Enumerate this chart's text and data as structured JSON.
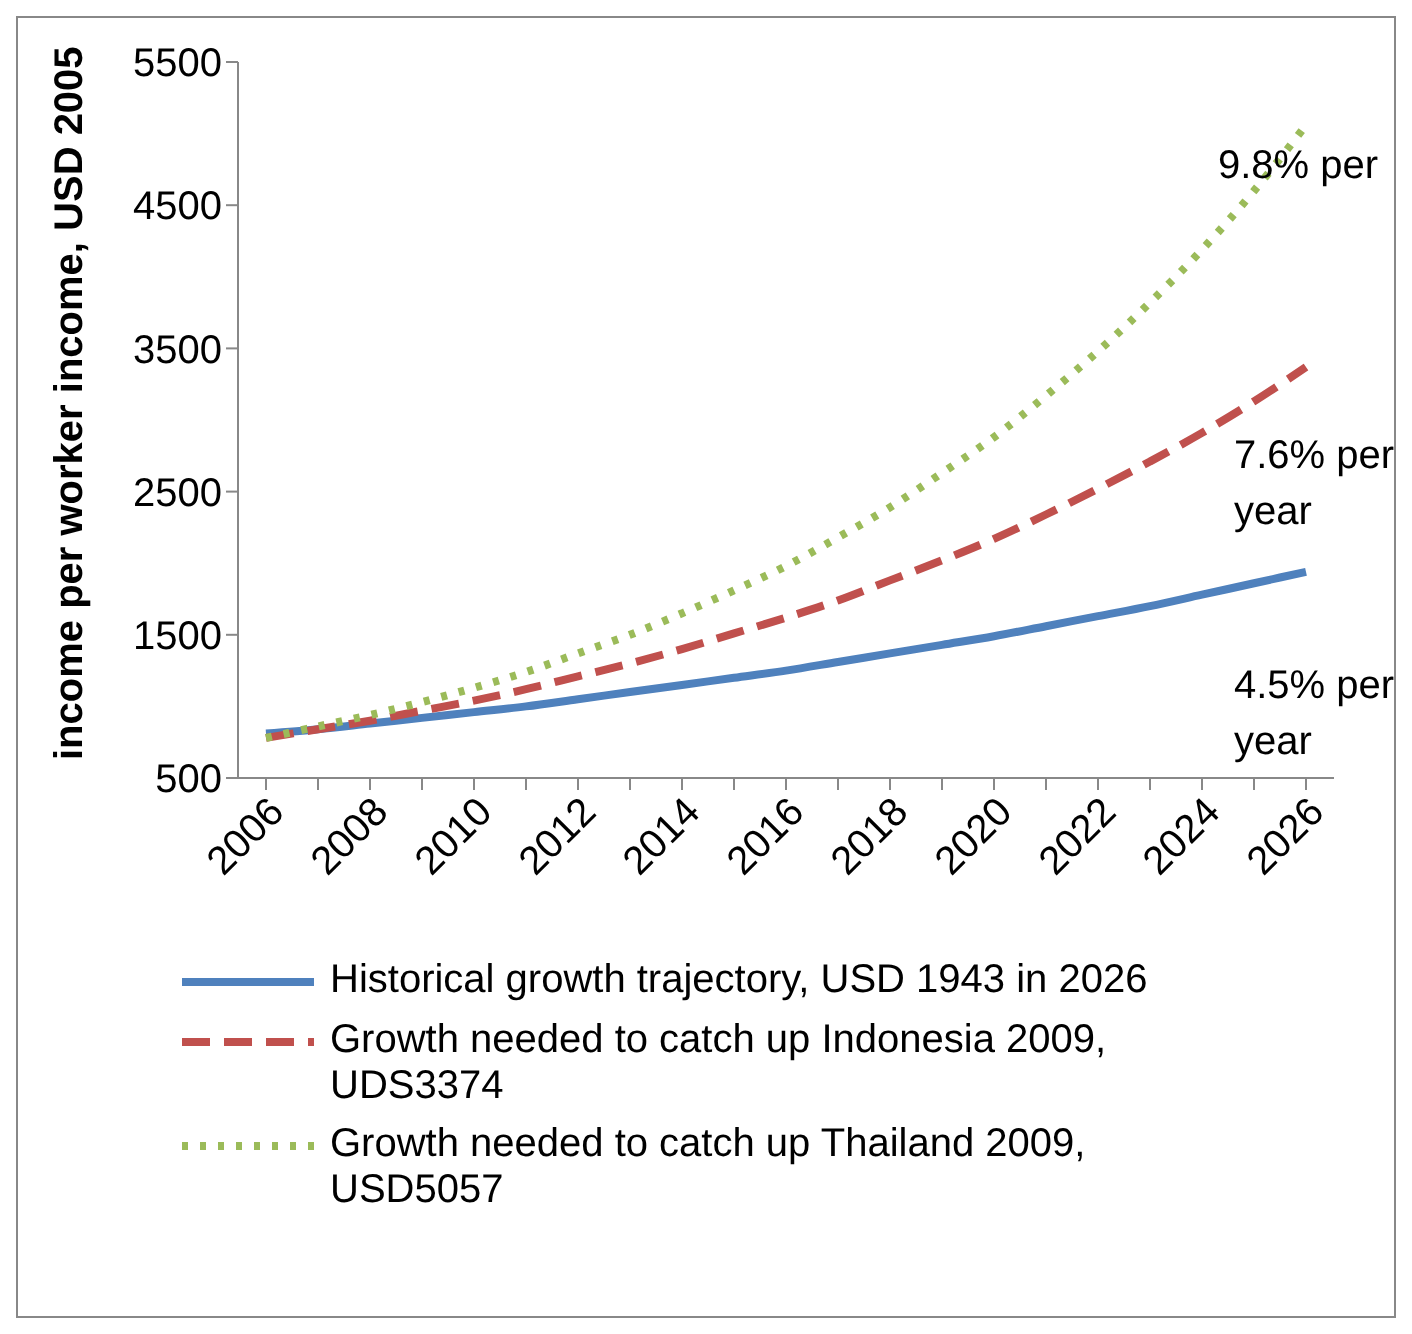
{
  "chart_data": {
    "type": "line",
    "ylabel": "income per worker income, USD 2005",
    "categories": [
      "2006",
      null,
      "2008",
      null,
      "2010",
      null,
      "2012",
      null,
      "2014",
      null,
      "2016",
      null,
      "2018",
      null,
      "2020",
      null,
      "2022",
      null,
      "2024",
      null,
      "2026"
    ],
    "ylim": [
      500,
      5500
    ],
    "yticks": [
      500,
      1500,
      2500,
      3500,
      4500,
      5500
    ],
    "grid": false,
    "legend": "bottom",
    "marker": "none",
    "series": [
      {
        "name": "Historical growth trajectory, USD 1943 in 2026",
        "color": "#4f81bd",
        "line_style": "solid",
        "values": [
          810,
          840,
          880,
          920,
          960,
          1000,
          1050,
          1100,
          1150,
          1200,
          1250,
          1310,
          1370,
          1430,
          1490,
          1560,
          1630,
          1700,
          1780,
          1860,
          1940
        ]
      },
      {
        "name": "Growth needed to catch up Indonesia 2009, UDS3374",
        "color": "#c0504d",
        "line_style": "dashed",
        "values": [
          780,
          840,
          900,
          970,
          1040,
          1120,
          1210,
          1300,
          1400,
          1510,
          1620,
          1740,
          1880,
          2020,
          2170,
          2340,
          2520,
          2710,
          2910,
          3130,
          3370
        ]
      },
      {
        "name": "Growth needed to catch up Thailand 2009, USD5057",
        "color": "#9bbb59",
        "line_style": "dotted",
        "values": [
          780,
          860,
          940,
          1030,
          1130,
          1240,
          1370,
          1500,
          1650,
          1810,
          1980,
          2180,
          2390,
          2630,
          2880,
          3170,
          3480,
          3820,
          4190,
          4600,
          5060
        ]
      }
    ],
    "annotations": [
      "9.8% per",
      "7.6% per\nyear",
      "4.5% per\nyear"
    ]
  }
}
